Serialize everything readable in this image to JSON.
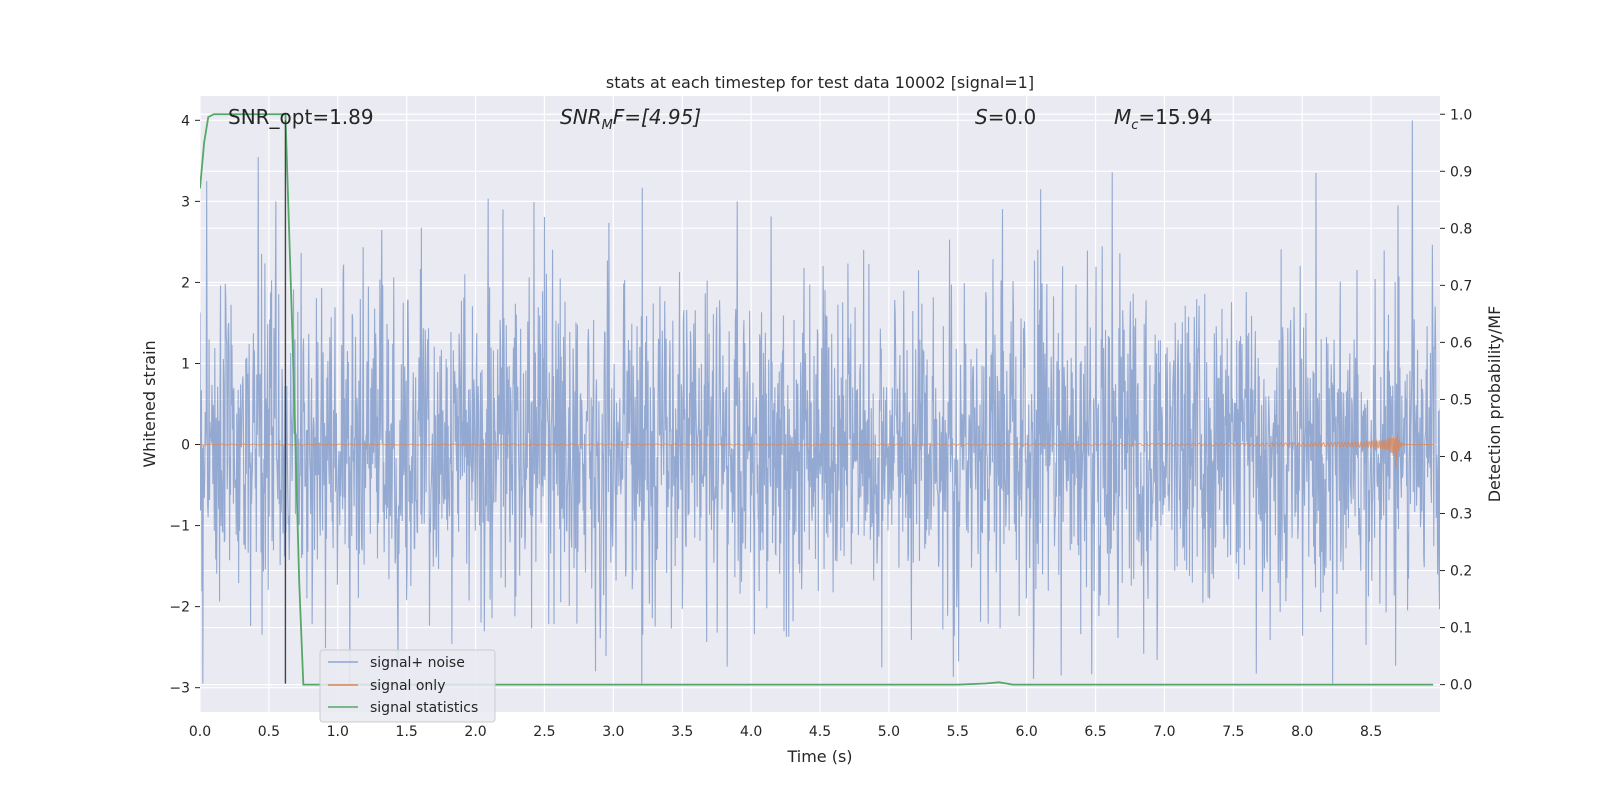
{
  "chart_data": {
    "type": "line",
    "title": "stats at each timestep for test data 10002 [signal=1]",
    "xlabel": "Time (s)",
    "ylabel_left": "Whitened strain",
    "ylabel_right": "Detection probability/MF",
    "xlim": [
      0.0,
      9.0
    ],
    "ylim_left": [
      -3.3,
      4.3
    ],
    "ylim_right": [
      -0.048,
      1.032
    ],
    "x_ticks": [
      "0.0",
      "0.5",
      "1.0",
      "1.5",
      "2.0",
      "2.5",
      "3.0",
      "3.5",
      "4.0",
      "4.5",
      "5.0",
      "5.5",
      "6.0",
      "6.5",
      "7.0",
      "7.5",
      "8.0",
      "8.5"
    ],
    "y_ticks_left": [
      "−3",
      "−2",
      "−1",
      "0",
      "1",
      "2",
      "3",
      "4"
    ],
    "y_ticks_right": [
      "0.0",
      "0.1",
      "0.2",
      "0.3",
      "0.4",
      "0.5",
      "0.6",
      "0.7",
      "0.8",
      "0.9",
      "1.0"
    ],
    "grid": true,
    "annotations": [
      {
        "text": "SNR_opt=1.89",
        "x": 0.2,
        "y": 4.1
      },
      {
        "prefix": "SNR",
        "sub": "M",
        "rest": "F=[4.95]",
        "x": 2.6,
        "y": 4.1
      },
      {
        "prefix": "S",
        "rest": "=0.0",
        "x": 5.6,
        "y": 4.1
      },
      {
        "prefix": "M",
        "sub": "c",
        "rest": "=15.94",
        "x": 6.6,
        "y": 4.1
      }
    ],
    "vertical_line": {
      "x": 0.62,
      "y_from": -2.95,
      "y_to": 4.0,
      "color": "#444444"
    },
    "legend": {
      "placement": "lower-left",
      "entries": [
        {
          "label": "signal+ noise",
          "color": "#8fa5cf"
        },
        {
          "label": "signal only",
          "color": "#dd8452"
        },
        {
          "label": "signal statistics",
          "color": "#55a868"
        }
      ]
    },
    "series": [
      {
        "name": "signal+ noise",
        "axis": "left",
        "color": "#8fa5cf",
        "kind": "noise",
        "x_range": [
          0.0,
          9.0
        ],
        "approx_std": 1.0,
        "y_min": -2.95,
        "y_max": 4.0,
        "peaks": [
          [
            0.05,
            3.25
          ],
          [
            0.55,
            3.0
          ],
          [
            8.1,
            3.35
          ],
          [
            8.8,
            4.0
          ],
          [
            6.1,
            3.15
          ],
          [
            3.9,
            3.0
          ],
          [
            2.2,
            2.9
          ],
          [
            0.02,
            -2.95
          ],
          [
            8.22,
            -2.95
          ],
          [
            6.25,
            -2.85
          ],
          [
            4.95,
            -2.75
          ]
        ]
      },
      {
        "name": "signal only",
        "axis": "left",
        "color": "#dd8452",
        "kind": "chirp",
        "x_range": [
          0.0,
          8.68
        ],
        "peak_amplitude": 0.33,
        "merger_time": 8.68
      },
      {
        "name": "signal statistics",
        "axis": "right",
        "color": "#55a868",
        "kind": "line",
        "x": [
          0.0,
          0.03,
          0.06,
          0.1,
          0.2,
          0.3,
          0.4,
          0.5,
          0.6,
          0.62,
          0.67,
          0.72,
          0.75,
          1.0,
          2.0,
          3.0,
          4.0,
          5.0,
          5.5,
          5.7,
          5.8,
          5.9,
          6.0,
          7.0,
          8.0,
          8.95
        ],
        "y": [
          0.87,
          0.95,
          0.995,
          1.0,
          1.0,
          1.0,
          1.0,
          1.0,
          1.0,
          1.0,
          0.62,
          0.18,
          0.0,
          0.0,
          0.0,
          0.0,
          0.0,
          0.0,
          0.0,
          0.002,
          0.004,
          0.0,
          0.0,
          0.0,
          0.0,
          0.0
        ]
      }
    ]
  }
}
